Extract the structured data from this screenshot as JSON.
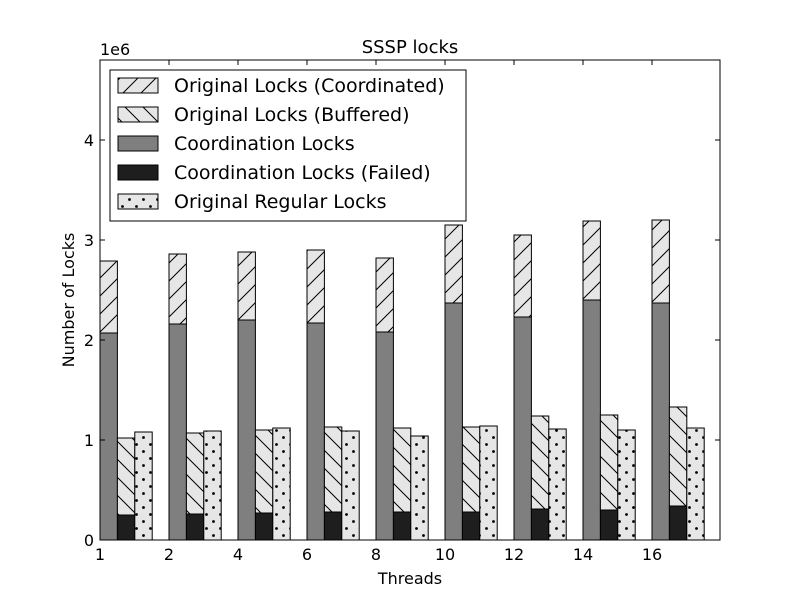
{
  "chart_data": {
    "type": "bar",
    "title": "SSSP locks",
    "xlabel": "Threads",
    "ylabel": "Number of Locks",
    "y_multiplier_label": "1e6",
    "categories": [
      "1",
      "2",
      "4",
      "6",
      "8",
      "10",
      "12",
      "14",
      "16"
    ],
    "x_tick_labels": [
      "1",
      "2",
      "4",
      "6",
      "8",
      "10",
      "12",
      "14",
      "16"
    ],
    "y_tick_labels": [
      "0",
      "1",
      "2",
      "3",
      "4"
    ],
    "y_ticks": [
      0,
      1,
      2,
      3,
      4
    ],
    "ylim": [
      0,
      4.8
    ],
    "scale": 1000000,
    "grid": false,
    "legend_position": "top-left",
    "series": [
      {
        "name": "Original Locks (Coordinated)",
        "stack": "coordinated",
        "pattern": "hatch-forward",
        "color": "#e6e6e6",
        "values": [
          0.72,
          0.7,
          0.68,
          0.73,
          0.74,
          0.78,
          0.82,
          0.79,
          0.83
        ]
      },
      {
        "name": "Original Locks (Buffered)",
        "stack": "buffered",
        "pattern": "hatch-back",
        "color": "#e6e6e6",
        "values": [
          0.77,
          0.81,
          0.83,
          0.85,
          0.84,
          0.85,
          0.93,
          0.95,
          0.99
        ]
      },
      {
        "name": "Coordination Locks",
        "stack": "coordinated",
        "pattern": "solid",
        "color": "#7f7f7f",
        "values": [
          2.07,
          2.16,
          2.2,
          2.17,
          2.08,
          2.37,
          2.23,
          2.4,
          2.37
        ]
      },
      {
        "name": "Coordination Locks (Failed)",
        "stack": "buffered",
        "pattern": "solid",
        "color": "#1e1e1e",
        "values": [
          0.25,
          0.26,
          0.27,
          0.28,
          0.28,
          0.28,
          0.31,
          0.3,
          0.34
        ]
      },
      {
        "name": "Original Regular Locks",
        "stack": "regular",
        "pattern": "dots",
        "color": "#e6e6e6",
        "values": [
          1.08,
          1.09,
          1.12,
          1.09,
          1.04,
          1.14,
          1.11,
          1.1,
          1.12
        ]
      }
    ]
  }
}
